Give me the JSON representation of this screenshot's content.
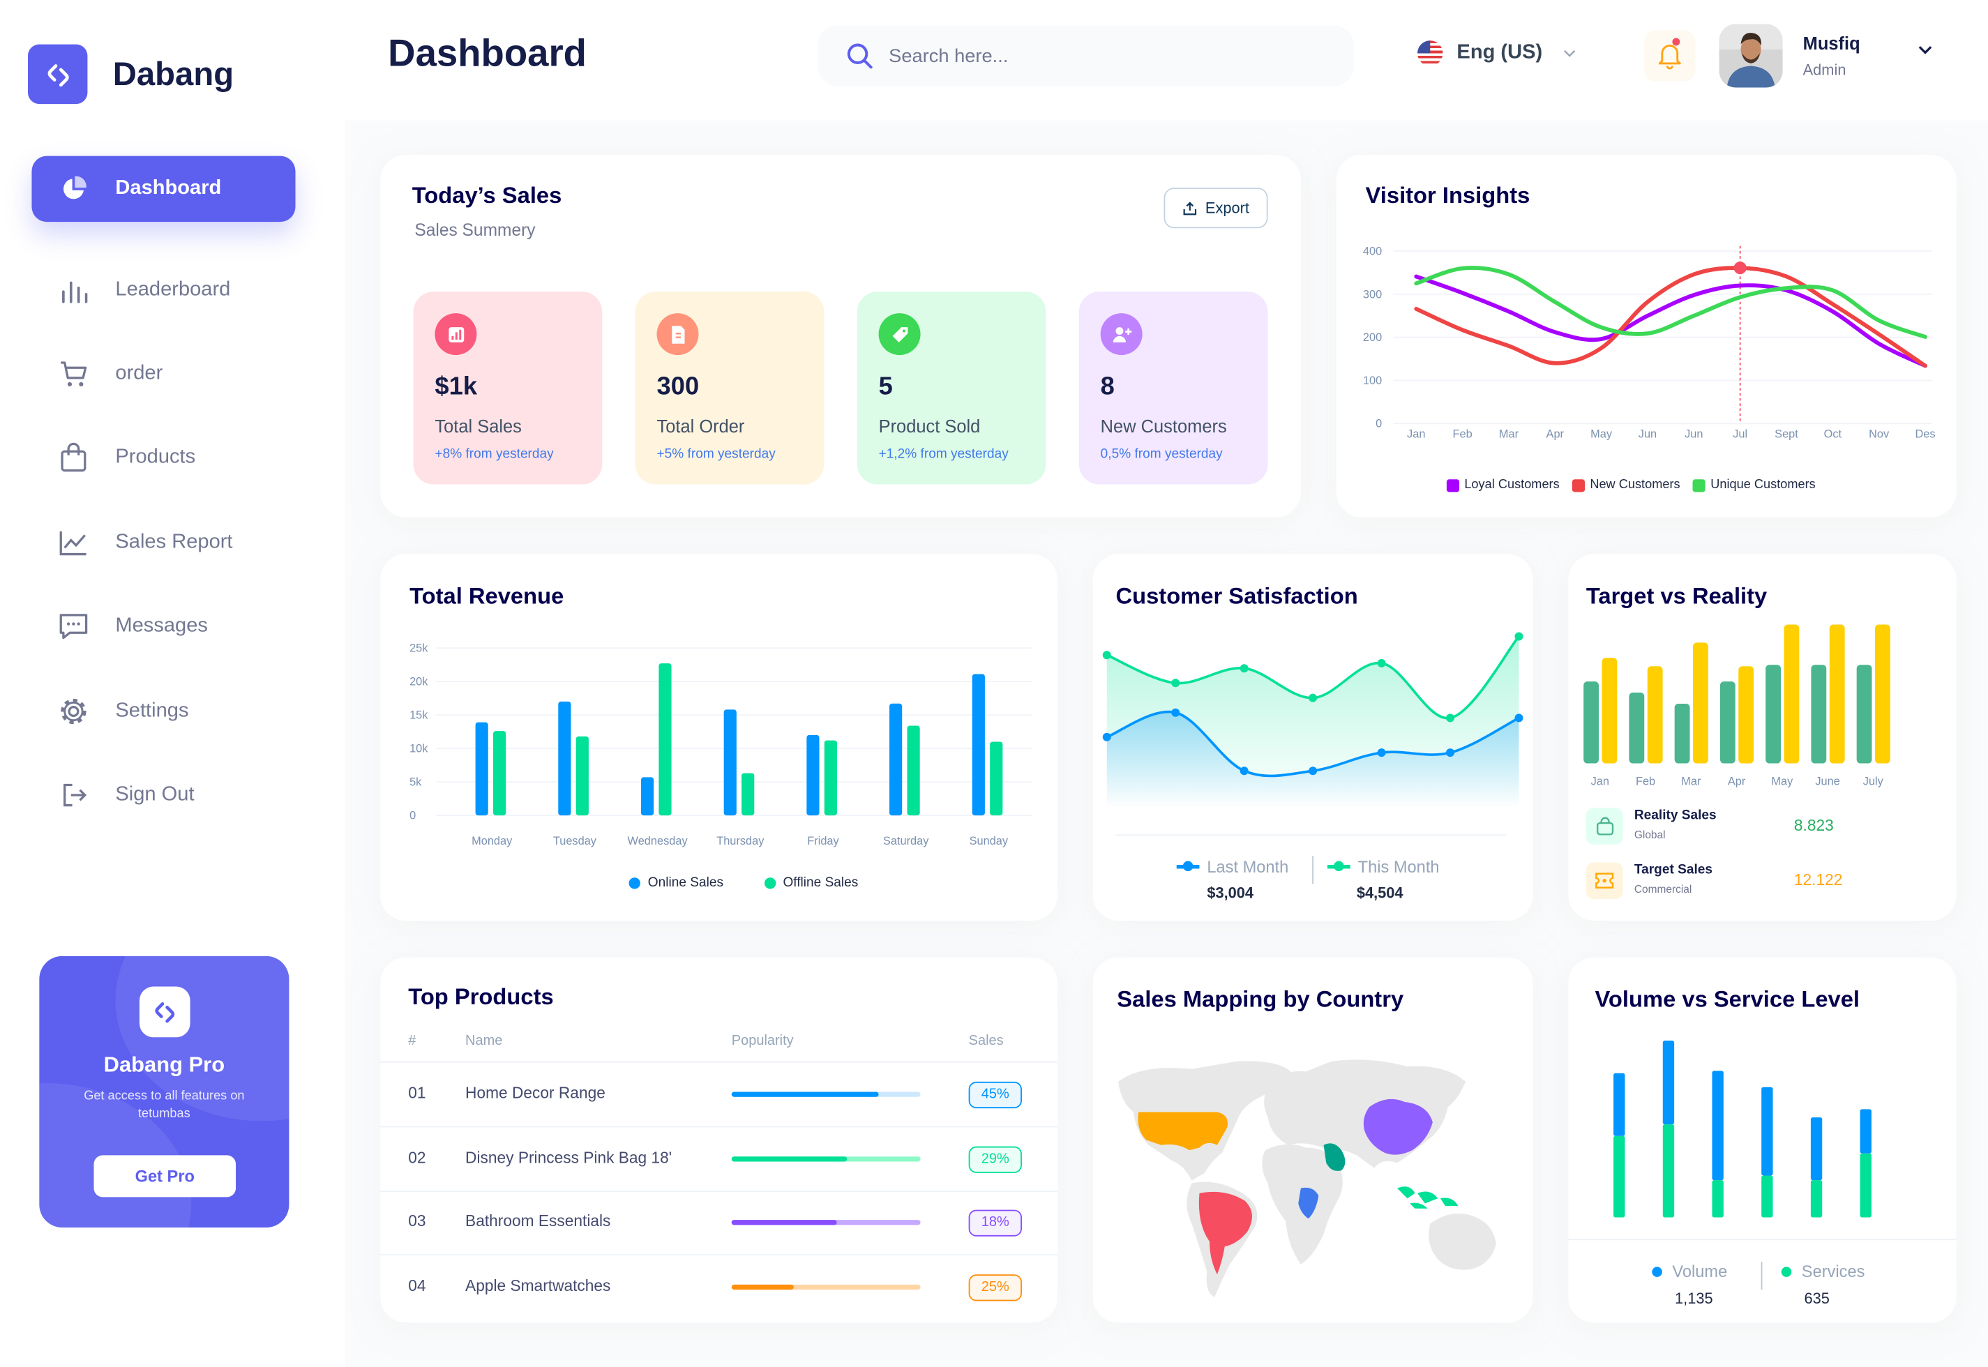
{
  "app": {
    "name": "Dabang"
  },
  "header": {
    "title": "Dashboard",
    "search_placeholder": "Search here...",
    "language": "Eng (US)",
    "user": {
      "name": "Musfiq",
      "role": "Admin"
    },
    "has_unread_notifications": true
  },
  "sidebar": {
    "items": [
      {
        "label": "Dashboard",
        "icon": "pie-chart-icon",
        "active": true
      },
      {
        "label": "Leaderboard",
        "icon": "bar-chart-icon",
        "active": false
      },
      {
        "label": "order",
        "icon": "cart-icon",
        "active": false
      },
      {
        "label": "Products",
        "icon": "shopping-bag-icon",
        "active": false
      },
      {
        "label": "Sales Report",
        "icon": "line-chart-icon",
        "active": false
      },
      {
        "label": "Messages",
        "icon": "message-icon",
        "active": false
      },
      {
        "label": "Settings",
        "icon": "gear-icon",
        "active": false
      },
      {
        "label": "Sign Out",
        "icon": "sign-out-icon",
        "active": false
      }
    ],
    "promo": {
      "title": "Dabang Pro",
      "text": "Get access to all features on tetumbas",
      "button": "Get Pro"
    }
  },
  "colors": {
    "accent": "#5D5FEF",
    "title": "#151D48",
    "muted": "#737791"
  },
  "todays_sales": {
    "title": "Today’s Sales",
    "subtitle": "Sales Summery",
    "export_label": "Export",
    "cards": [
      {
        "value": "$1k",
        "label": "Total Sales",
        "change": "+8% from yesterday",
        "icon": "bar-chart-icon",
        "bg": "#FFE2E5",
        "icon_bg": "#FA5A7D"
      },
      {
        "value": "300",
        "label": "Total Order",
        "change": "+5% from yesterday",
        "icon": "document-icon",
        "bg": "#FFF4DE",
        "icon_bg": "#FF947A"
      },
      {
        "value": "5",
        "label": "Product Sold",
        "change": "+1,2% from yesterday",
        "icon": "tag-icon",
        "bg": "#DCFCE7",
        "icon_bg": "#3CD856"
      },
      {
        "value": "8",
        "label": "New Customers",
        "change": "0,5% from yesterday",
        "icon": "add-user-icon",
        "bg": "#F3E8FF",
        "icon_bg": "#BF83FF"
      }
    ]
  },
  "chart_data": [
    {
      "title": "Visitor Insights",
      "type": "line",
      "categories": [
        "Jan",
        "Feb",
        "Mar",
        "Apr",
        "May",
        "Jun",
        "Jun",
        "Jul",
        "Sept",
        "Oct",
        "Nov",
        "Des"
      ],
      "ylim": [
        0,
        400
      ],
      "yticks": [
        "0",
        "100",
        "200",
        "300",
        "400"
      ],
      "grid": true,
      "legend": "bottom",
      "highlight": {
        "series": 1,
        "index": 7
      },
      "series": [
        {
          "name": "Loyal Customers",
          "color": "#A700FF",
          "values": [
            341,
            303,
            260,
            212,
            196,
            250,
            298,
            320,
            309,
            260,
            185,
            134
          ]
        },
        {
          "name": "New Customers",
          "color": "#EF4444",
          "values": [
            266,
            217,
            180,
            140,
            175,
            282,
            346,
            361,
            341,
            277,
            207,
            134
          ]
        },
        {
          "name": "Unique Customers",
          "color": "#3CD856",
          "values": [
            325,
            360,
            346,
            282,
            223,
            209,
            250,
            293,
            314,
            309,
            239,
            201
          ]
        }
      ]
    },
    {
      "title": "Total Revenue",
      "type": "bar",
      "categories": [
        "Monday",
        "Tuesday",
        "Wednesday",
        "Thursday",
        "Friday",
        "Saturday",
        "Sunday"
      ],
      "ylim": [
        0,
        25000
      ],
      "yticks": [
        "0",
        "5k",
        "10k",
        "15k",
        "20k",
        "25k"
      ],
      "grid": true,
      "legend": "bottom",
      "series": [
        {
          "name": "Online Sales",
          "color": "#0095FF",
          "values": [
            13900,
            17000,
            5700,
            15800,
            12000,
            16700,
            21100
          ]
        },
        {
          "name": "Offline Sales",
          "color": "#00E096",
          "values": [
            12600,
            11800,
            22700,
            6300,
            11200,
            13400,
            11000
          ]
        }
      ]
    },
    {
      "title": "Customer Satisfaction",
      "type": "area",
      "legend": "bottom",
      "series": [
        {
          "name": "Last Month",
          "color": "#0095FF",
          "total": "$3,004",
          "values": [
            3.2,
            4.25,
            1.75,
            1.75,
            2.53,
            2.53,
            4.02
          ]
        },
        {
          "name": "This Month",
          "color": "#07E098",
          "total": "$4,504",
          "values": [
            6.72,
            5.52,
            6.15,
            4.88,
            6.37,
            4.02,
            7.52
          ]
        }
      ]
    },
    {
      "title": "Target vs Reality",
      "type": "bar",
      "categories": [
        "Jan",
        "Feb",
        "Mar",
        "Apr",
        "May",
        "June",
        "July"
      ],
      "series": [
        {
          "name": "Reality Sales",
          "sub": "Global",
          "total": "8.823",
          "color": "#4AB58E",
          "values": [
            5.9,
            5.1,
            4.3,
            5.9,
            7.1,
            7.1,
            7.1
          ]
        },
        {
          "name": "Target Sales",
          "sub": "Commercial",
          "total": "12.122",
          "color": "#FFCF00",
          "values": [
            7.6,
            7.0,
            8.7,
            7.0,
            10,
            10,
            10
          ]
        }
      ]
    },
    {
      "title": "Volume vs Service Level",
      "type": "bar",
      "stacked": true,
      "legend": "bottom",
      "series": [
        {
          "name": "Volume",
          "color": "#0095FF",
          "total": "1,135",
          "values": [
            2.7,
            3.6,
            4.7,
            3.8,
            2.7,
            1.9
          ]
        },
        {
          "name": "Services",
          "color": "#00E096",
          "total": "635",
          "values": [
            3.5,
            4.0,
            1.6,
            1.8,
            1.6,
            2.75
          ]
        }
      ]
    }
  ],
  "top_products": {
    "title": "Top Products",
    "columns": [
      "#",
      "Name",
      "Popularity",
      "Sales"
    ],
    "rows": [
      {
        "rank": "01",
        "name": "Home Decor Range",
        "popularity": 0.78,
        "sales": "45%",
        "color": "#0095FF",
        "track": "#CDE7FF"
      },
      {
        "rank": "02",
        "name": "Disney Princess Pink Bag 18'",
        "popularity": 0.61,
        "sales": "29%",
        "color": "#00E096",
        "track": "#8CFAC7"
      },
      {
        "rank": "03",
        "name": "Bathroom Essentials",
        "popularity": 0.56,
        "sales": "18%",
        "color": "#884DFF",
        "track": "#C5A8FF"
      },
      {
        "rank": "04",
        "name": "Apple Smartwatches",
        "popularity": 0.33,
        "sales": "25%",
        "color": "#FF8F0D",
        "track": "#FFD5A4"
      }
    ]
  },
  "sales_mapping": {
    "title": "Sales Mapping by Country",
    "highlighted": [
      {
        "region": "USA",
        "color": "#FFA800"
      },
      {
        "region": "Brazil",
        "color": "#F64E60"
      },
      {
        "region": "China",
        "color": "#8F60FF"
      },
      {
        "region": "Saudi Arabia",
        "color": "#00A389"
      },
      {
        "region": "DR Congo",
        "color": "#4079ED"
      },
      {
        "region": "Indonesia",
        "color": "#00E096"
      }
    ]
  }
}
